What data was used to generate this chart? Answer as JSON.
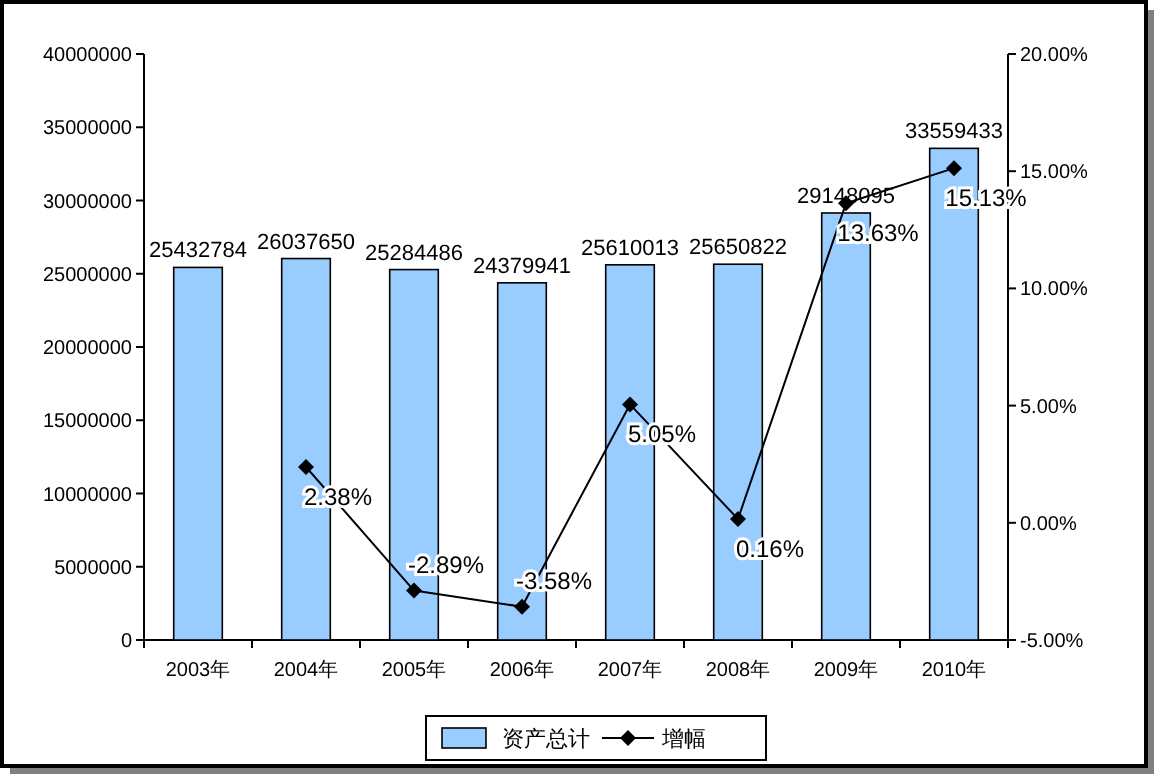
{
  "chart_data": {
    "type": "bar",
    "categories": [
      "2003年",
      "2004年",
      "2005年",
      "2006年",
      "2007年",
      "2008年",
      "2009年",
      "2010年"
    ],
    "series": [
      {
        "name": "资产总计",
        "color": "#99ccff",
        "values": [
          25432784,
          26037650,
          25284486,
          24379941,
          25610013,
          25650822,
          29148095,
          33559433
        ]
      },
      {
        "name": "增幅",
        "type": "line",
        "axis": "y2",
        "color": "#000000",
        "marker": "diamond",
        "values": [
          null,
          2.38,
          -2.89,
          -3.58,
          5.05,
          0.16,
          13.63,
          15.13
        ],
        "value_labels": [
          null,
          "2.38%",
          "-2.89%",
          "-3.58%",
          "5.05%",
          "0.16%",
          "13.63%",
          "15.13%"
        ]
      }
    ],
    "ylim": [
      0,
      40000000
    ],
    "yticks": [
      0,
      5000000,
      10000000,
      15000000,
      20000000,
      25000000,
      30000000,
      35000000,
      40000000
    ],
    "y2lim": [
      -5,
      20
    ],
    "y2ticks": [
      {
        "value": -5,
        "label": "-5.00%"
      },
      {
        "value": 0,
        "label": "0.00%"
      },
      {
        "value": 5,
        "label": "5.00%"
      },
      {
        "value": 10,
        "label": "10.00%"
      },
      {
        "value": 15,
        "label": "15.00%"
      },
      {
        "value": 20,
        "label": "20.00%"
      }
    ],
    "data_labels": true,
    "legend": "bottom",
    "grid": false
  }
}
